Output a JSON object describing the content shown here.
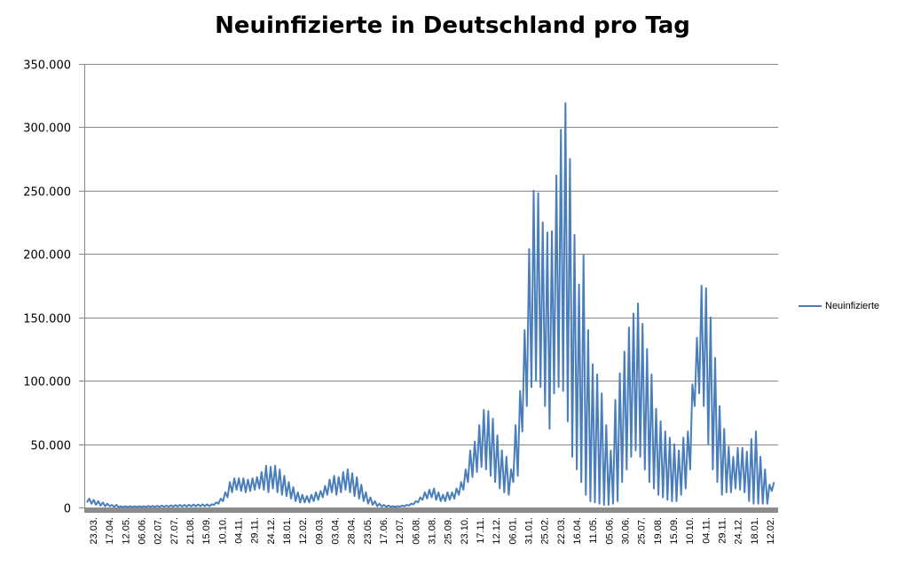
{
  "chart_data": {
    "type": "line",
    "title": "Neuinfizierte in Deutschland pro Tag",
    "xlabel": "",
    "ylabel": "",
    "ylim": [
      0,
      350000
    ],
    "y_ticks": [
      "0",
      "50.000",
      "100.000",
      "150.000",
      "200.000",
      "250.000",
      "300.000",
      "350.000"
    ],
    "x_range": [
      "2020-03-23",
      "2023-02-12"
    ],
    "x_ticks": [
      "23.03.",
      "17.04.",
      "12.05.",
      "06.06.",
      "02.07.",
      "27.07.",
      "21.08.",
      "15.09.",
      "10.10.",
      "04.11.",
      "29.11.",
      "24.12.",
      "18.01.",
      "12.02.",
      "09.03.",
      "03.04.",
      "28.04.",
      "23.05.",
      "17.06.",
      "12.07.",
      "06.08.",
      "31.08.",
      "25.09.",
      "23.10.",
      "17.11.",
      "12.12.",
      "06.01.",
      "31.01.",
      "25.02.",
      "22.03.",
      "16.04.",
      "11.05.",
      "05.06.",
      "30.06.",
      "25.07.",
      "19.08.",
      "15.09.",
      "10.10.",
      "04.11.",
      "29.11.",
      "24.12.",
      "18.01.",
      "12.02."
    ],
    "grid": "horizontal",
    "legend_position": "right",
    "series": [
      {
        "name": "Neuinfizierte",
        "color": "#4a7ebb",
        "weekly_peaks": [
          7000,
          6000,
          5000,
          4000,
          3000,
          2000,
          2000,
          1000,
          1000,
          1000,
          1000,
          1000,
          1000,
          1200,
          1200,
          1300,
          1500,
          1500,
          1700,
          1800,
          2000,
          2000,
          2200,
          2300,
          2400,
          2500,
          2500,
          2500,
          4000,
          7000,
          12000,
          20000,
          23000,
          23000,
          23000,
          22000,
          23000,
          24000,
          28000,
          33000,
          32000,
          33000,
          30000,
          25000,
          20000,
          16000,
          12000,
          10000,
          9000,
          10000,
          12000,
          13000,
          17000,
          22000,
          25000,
          24000,
          28000,
          30000,
          27000,
          24000,
          18000,
          12000,
          8000,
          5000,
          3000,
          2000,
          1500,
          1000,
          1000,
          1500,
          2000,
          3000,
          5000,
          8000,
          12000,
          14000,
          15000,
          12000,
          10000,
          12000,
          12000,
          15000,
          20000,
          30000,
          45000,
          52000,
          65000,
          77000,
          76000,
          70000,
          57000,
          45000,
          40000,
          30000,
          65000,
          92000,
          140000,
          204000,
          250000,
          248000,
          225000,
          217000,
          218000,
          262000,
          298000,
          319000,
          275000,
          215000,
          176000,
          199000,
          140000,
          113000,
          105000,
          90000,
          65000,
          45000,
          85000,
          106000,
          123000,
          142000,
          153000,
          161000,
          145000,
          125000,
          105000,
          78000,
          68000,
          60000,
          55000,
          50000,
          45000,
          55000,
          60000,
          97000,
          134000,
          175000,
          173000,
          150000,
          118000,
          80000,
          62000,
          48000,
          40000,
          47000,
          47000,
          44000,
          54000,
          60000,
          40000,
          30000,
          18000,
          20000
        ],
        "weekly_troughs": [
          4000,
          3000,
          2000,
          1500,
          1000,
          1000,
          500,
          300,
          300,
          300,
          300,
          300,
          400,
          400,
          500,
          500,
          500,
          600,
          600,
          700,
          700,
          800,
          800,
          900,
          900,
          1000,
          1000,
          1000,
          2000,
          3000,
          5000,
          8000,
          12000,
          14000,
          13000,
          12000,
          13000,
          14000,
          15000,
          14000,
          12000,
          15000,
          12000,
          10000,
          9000,
          7000,
          5000,
          4000,
          4000,
          4000,
          5000,
          6000,
          8000,
          10000,
          12000,
          10000,
          12000,
          14000,
          12000,
          9000,
          7000,
          5000,
          3000,
          2000,
          1000,
          700,
          500,
          500,
          600,
          800,
          1000,
          1500,
          2500,
          4000,
          6000,
          7000,
          8000,
          6000,
          5000,
          5000,
          6000,
          7000,
          10000,
          14000,
          20000,
          24000,
          28000,
          32000,
          30000,
          25000,
          20000,
          15000,
          12000,
          10000,
          20000,
          25000,
          60000,
          80000,
          95000,
          100000,
          95000,
          80000,
          62000,
          90000,
          95000,
          92000,
          68000,
          40000,
          30000,
          20000,
          10000,
          5000,
          4000,
          3000,
          2000,
          2000,
          3000,
          5000,
          20000,
          30000,
          40000,
          45000,
          40000,
          30000,
          20000,
          15000,
          10000,
          8000,
          6000,
          5000,
          5000,
          10000,
          15000,
          30000,
          80000,
          90000,
          80000,
          50000,
          30000,
          20000,
          10000,
          12000,
          12000,
          15000,
          14000,
          12000,
          5000,
          3000,
          3000,
          3000,
          3000,
          13000
        ]
      }
    ]
  }
}
